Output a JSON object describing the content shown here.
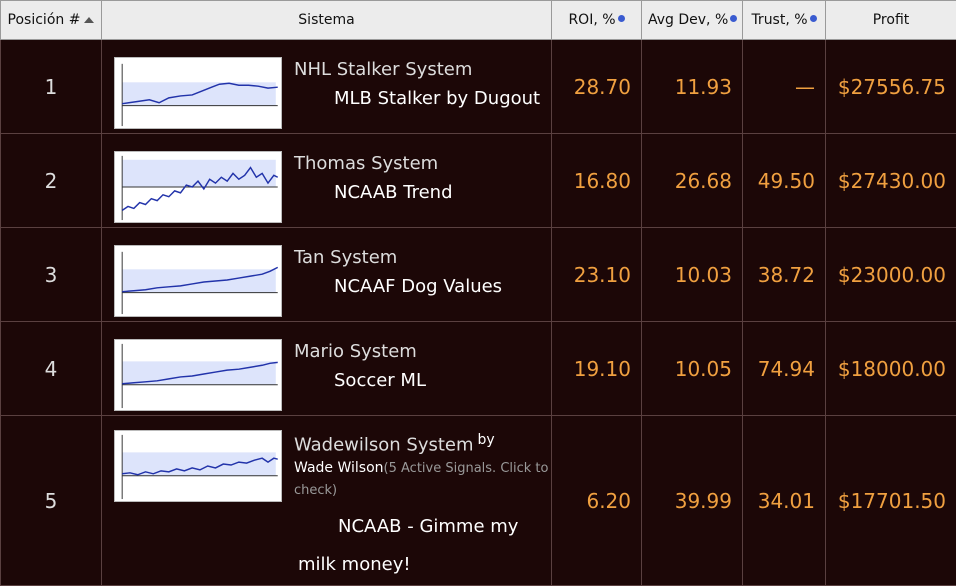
{
  "headers": {
    "position": "Posición #",
    "system": "Sistema",
    "roi": "ROI, %",
    "avg_dev": "Avg Dev, %",
    "trust": "Trust, %",
    "profit": "Profit"
  },
  "rows": [
    {
      "pos": "1",
      "name": "NHL Stalker System",
      "sub": "MLB Stalker by Dugout",
      "roi": "28.70",
      "avg_dev": "11.93",
      "trust": "—",
      "profit": "$27556.75"
    },
    {
      "pos": "2",
      "name": "Thomas System",
      "sub": "NCAAB Trend",
      "roi": "16.80",
      "avg_dev": "26.68",
      "trust": "49.50",
      "profit": "$27430.00"
    },
    {
      "pos": "3",
      "name": "Tan System",
      "sub": "NCAAF Dog Values",
      "roi": "23.10",
      "avg_dev": "10.03",
      "trust": "38.72",
      "profit": "$23000.00"
    },
    {
      "pos": "4",
      "name": "Mario System",
      "sub": "Soccer ML",
      "roi": "19.10",
      "avg_dev": "10.05",
      "trust": "74.94",
      "profit": "$18000.00"
    },
    {
      "pos": "5",
      "name": "Wadewilson System",
      "by": "by",
      "author": "Wade Wilson",
      "signals": "(5 Active Signals. Click to check)",
      "sub_line1": "NCAAB - Gimme my",
      "sub_line2": "milk money!",
      "roi": "6.20",
      "avg_dev": "39.99",
      "trust": "34.01",
      "profit": "$17701.50"
    }
  ],
  "colors": {
    "accent": "#f0a040",
    "background": "#1c0707",
    "header_bg": "#ececec",
    "chart_line": "#2233aa"
  }
}
